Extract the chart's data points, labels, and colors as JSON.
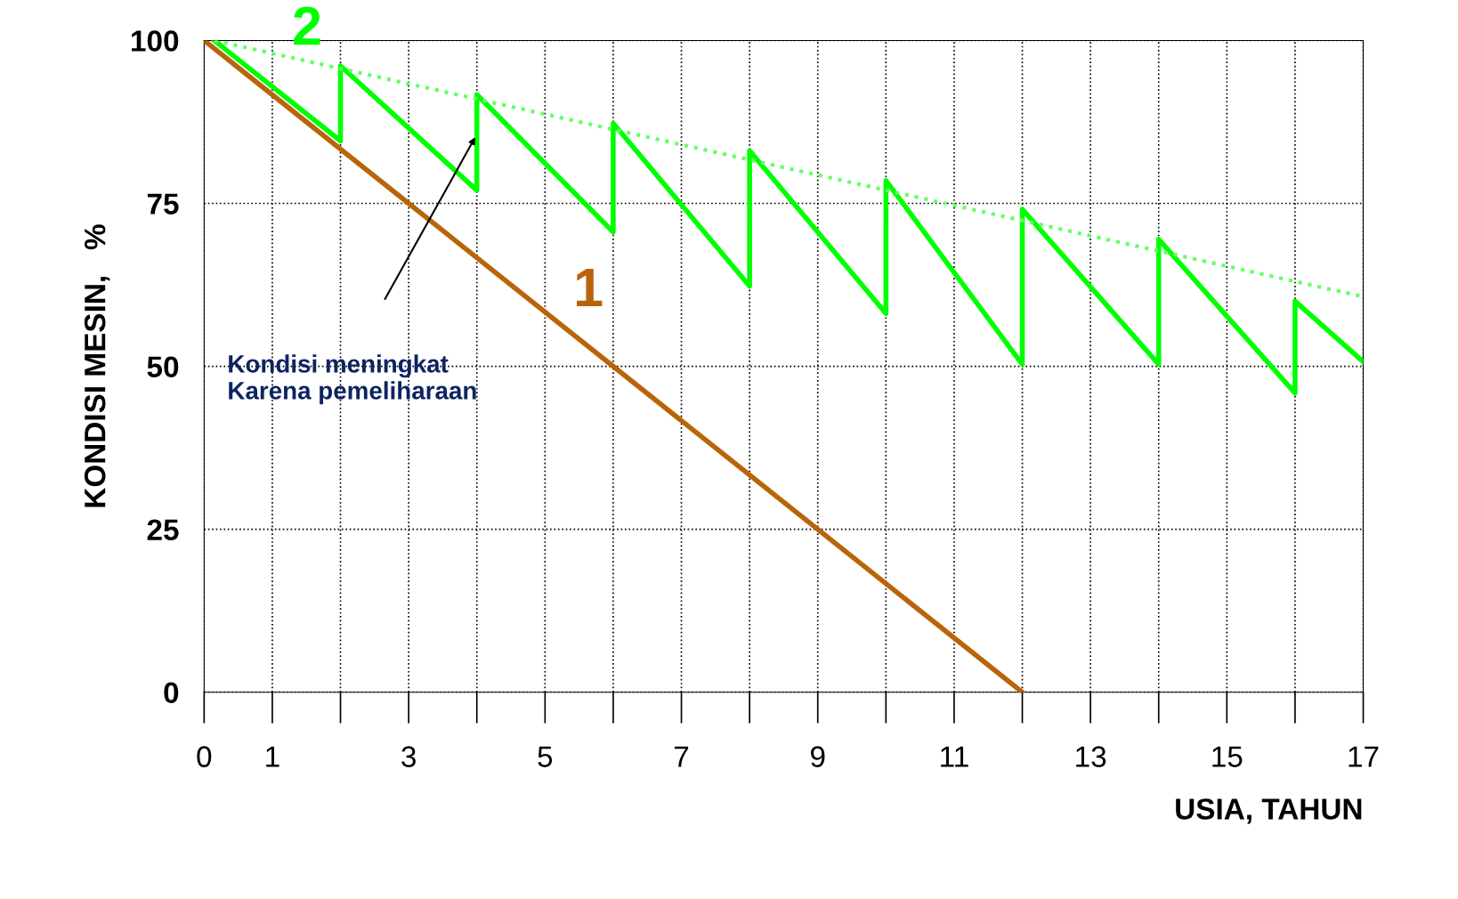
{
  "chart_data": {
    "type": "line",
    "xlabel": "USIA, TAHUN",
    "ylabel": "KONDISI MESIN,   %",
    "xlim": [
      0,
      17
    ],
    "ylim": [
      0,
      100
    ],
    "xticks": [
      0,
      1,
      {
        "value": 2,
        "label": null
      },
      3,
      {
        "value": 4,
        "label": null
      },
      5,
      {
        "value": 6,
        "label": null
      },
      7,
      {
        "value": 8,
        "label": null
      },
      9,
      {
        "value": 10,
        "label": null
      },
      11,
      {
        "value": 12,
        "label": null
      },
      13,
      {
        "value": 14,
        "label": null
      },
      15,
      {
        "value": 16,
        "label": null
      },
      17
    ],
    "yticks": [
      0,
      25,
      50,
      75,
      100
    ],
    "grid": true,
    "legend": false,
    "series": [
      {
        "name": "1",
        "color": "#b8650a",
        "x": [
          0,
          12
        ],
        "values": [
          100,
          0
        ]
      },
      {
        "name": "2",
        "color": "#00ff00",
        "x": [
          0.15,
          2,
          2,
          4,
          4,
          6,
          6,
          8,
          8,
          10,
          10,
          12,
          12,
          14,
          14,
          16,
          16,
          17
        ],
        "values": [
          100,
          84.6,
          96.1,
          77,
          91.7,
          70.6,
          87.3,
          62.3,
          83.1,
          58.1,
          78.5,
          50.3,
          74.1,
          50.3,
          69.5,
          45.9,
          60,
          50.7
        ]
      },
      {
        "color": "#66ff66",
        "line_style": "dotted",
        "x": [
          0.15,
          17
        ],
        "values": [
          100,
          60.7
        ]
      }
    ],
    "annotations": [
      "Kondisi meningkat\nKarena pemeliharaan"
    ]
  }
}
